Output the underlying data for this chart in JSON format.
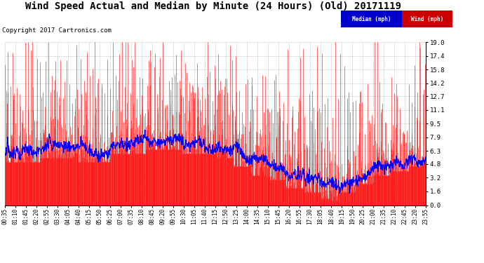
{
  "title": "Wind Speed Actual and Median by Minute (24 Hours) (Old) 20171119",
  "copyright": "Copyright 2017 Cartronics.com",
  "legend_median_label": "Median (mph)",
  "legend_wind_label": "Wind (mph)",
  "legend_median_color": "#0000cc",
  "legend_wind_color": "#cc0000",
  "y_ticks": [
    0.0,
    1.6,
    3.2,
    4.8,
    6.3,
    7.9,
    9.5,
    11.1,
    12.7,
    14.2,
    15.8,
    17.4,
    19.0
  ],
  "ylim": [
    0.0,
    19.0
  ],
  "x_tick_labels": [
    "00:35",
    "01:10",
    "01:45",
    "02:20",
    "02:55",
    "03:30",
    "04:05",
    "04:40",
    "05:15",
    "05:50",
    "06:25",
    "07:00",
    "07:35",
    "08:10",
    "08:45",
    "09:20",
    "09:55",
    "10:30",
    "11:05",
    "11:40",
    "12:15",
    "12:50",
    "13:25",
    "14:00",
    "14:35",
    "15:10",
    "15:45",
    "16:20",
    "16:55",
    "17:30",
    "18:05",
    "18:40",
    "19:15",
    "19:50",
    "20:25",
    "21:00",
    "21:35",
    "22:10",
    "22:45",
    "23:20",
    "23:55"
  ],
  "wind_color": "#ff0000",
  "median_color": "#0000ff",
  "grid_color": "#aaaaaa",
  "bg_color": "#ffffff",
  "title_fontsize": 10,
  "copyright_fontsize": 6.5,
  "seed": 12345
}
